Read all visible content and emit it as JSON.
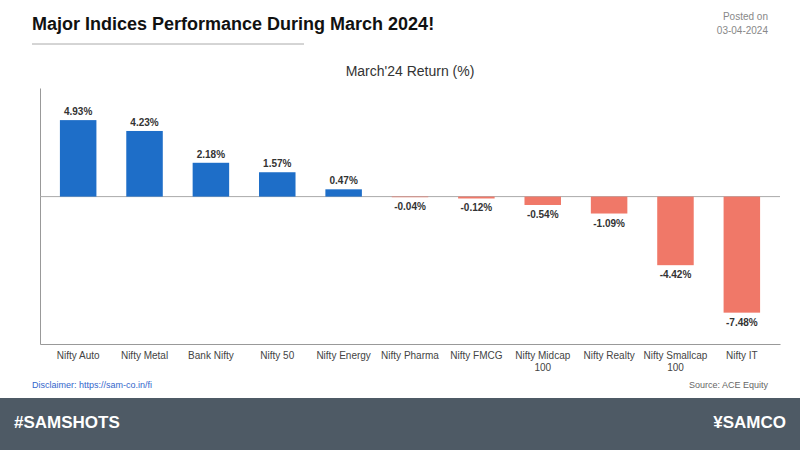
{
  "chart_data": {
    "type": "bar",
    "title": "Major Indices Performance During March 2024!",
    "subtitle": "March'24 Return (%)",
    "annotations": [
      "Posted on",
      "03-04-2024",
      "Disclaimer: https://sam-co.in/fi",
      "Source: ACE Equity",
      "#SAMSHOTS",
      "¥SAMCO"
    ],
    "categories": [
      "Nifty Auto",
      "Nifty Metal",
      "Bank Nifty",
      "Nifty 50",
      "Nifty Energy",
      "Nifty Pharma",
      "Nifty FMCG",
      "Nifty Midcap\n100",
      "Nifty Realty",
      "Nifty Smallcap\n100",
      "Nifty IT"
    ],
    "values": [
      4.93,
      4.23,
      2.18,
      1.57,
      0.47,
      -0.04,
      -0.12,
      -0.54,
      -1.09,
      -4.42,
      -7.48
    ],
    "value_labels": [
      "4.93%",
      "4.23%",
      "2.18%",
      "1.57%",
      "0.47%",
      "-0.04%",
      "-0.12%",
      "-0.54%",
      "-1.09%",
      "-4.42%",
      "-7.48%"
    ],
    "colors": [
      "#1E6EC8",
      "#1E6EC8",
      "#1E6EC8",
      "#1E6EC8",
      "#1E6EC8",
      "#F07868",
      "#F07868",
      "#F07868",
      "#F07868",
      "#F07868",
      "#F07868"
    ],
    "ylim": [
      -9.5,
      7.0
    ],
    "data_labels": true,
    "tick_labels": "x"
  }
}
